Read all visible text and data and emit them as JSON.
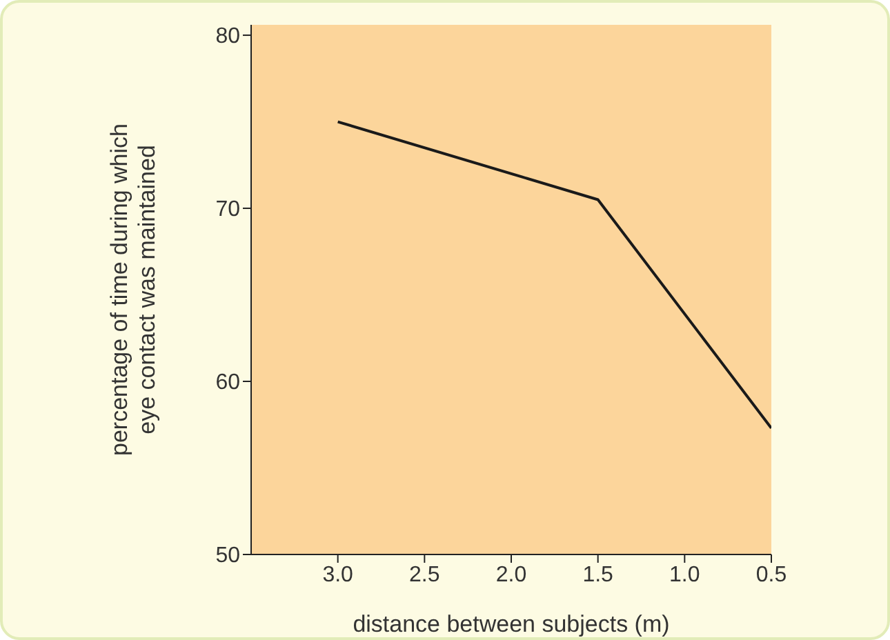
{
  "chart_data": {
    "type": "line",
    "xlabel": "distance between subjects (m)",
    "ylabel": "percentage of time during which\neye contact was maintained",
    "x": [
      3.0,
      1.5,
      0.5
    ],
    "series": [
      {
        "color": "#1a1a1a",
        "values": [
          75,
          70.5,
          57.3
        ]
      }
    ],
    "xlim": [
      3.5,
      0.5
    ],
    "xticks": [
      {
        "value": 3,
        "label": "3.0"
      },
      2.5,
      {
        "value": 2,
        "label": "2.0"
      },
      1.5,
      {
        "value": 1,
        "label": "1.0"
      },
      0.5
    ],
    "ylim": [
      50,
      80.6
    ],
    "yticks": [
      50,
      60,
      70,
      80
    ],
    "grid": false,
    "marker": "none",
    "line_style": "solid"
  }
}
